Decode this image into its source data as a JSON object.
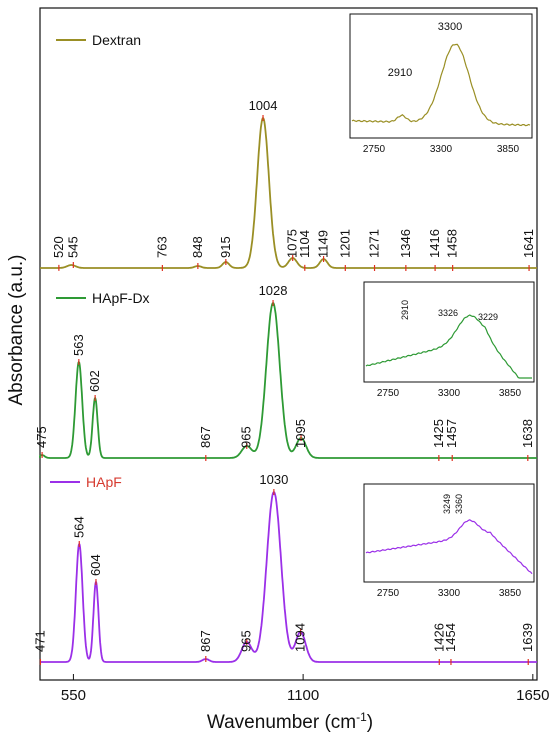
{
  "chart_data": {
    "type": "line",
    "xlabel": "Wavenumber (cm",
    "xlabel_sup": "-1",
    "xlabel_close": ")",
    "ylabel": "Absorbance (a.u.)",
    "xlim": [
      470,
      1660
    ],
    "x_ticks": [
      550,
      1100,
      1650
    ],
    "x_tick_labels": [
      "550",
      "1100",
      "1650"
    ],
    "grid": false,
    "series": [
      {
        "name": "Dextran",
        "color": "#9a8f25",
        "name_color": "#111111",
        "peaks": [
          {
            "x": 1004,
            "h": 150,
            "w": 14
          },
          {
            "x": 1075,
            "h": 10,
            "w": 10
          },
          {
            "x": 1149,
            "h": 9,
            "w": 9
          },
          {
            "x": 915,
            "h": 6,
            "w": 8
          },
          {
            "x": 848,
            "h": 2,
            "w": 8
          },
          {
            "x": 545,
            "h": 3,
            "w": 10
          }
        ],
        "labels": [
          {
            "x": 520,
            "text": "520"
          },
          {
            "x": 545,
            "text": "545"
          },
          {
            "x": 763,
            "text": "763"
          },
          {
            "x": 848,
            "text": "848"
          },
          {
            "x": 915,
            "text": "915"
          },
          {
            "x": 1004,
            "text": "1004"
          },
          {
            "x": 1075,
            "text": "1075"
          },
          {
            "x": 1104,
            "text": "1104"
          },
          {
            "x": 1149,
            "text": "1149"
          },
          {
            "x": 1201,
            "text": "1201"
          },
          {
            "x": 1271,
            "text": "1271"
          },
          {
            "x": 1346,
            "text": "1346"
          },
          {
            "x": 1416,
            "text": "1416"
          },
          {
            "x": 1458,
            "text": "1458"
          },
          {
            "x": 1641,
            "text": "1641"
          }
        ]
      },
      {
        "name": "HApF-Dx",
        "color": "#2e9a35",
        "name_color": "#111111",
        "peaks": [
          {
            "x": 1028,
            "h": 155,
            "w": 16
          },
          {
            "x": 563,
            "h": 96,
            "w": 8
          },
          {
            "x": 602,
            "h": 60,
            "w": 6
          },
          {
            "x": 1095,
            "h": 20,
            "w": 12
          },
          {
            "x": 965,
            "h": 12,
            "w": 12
          },
          {
            "x": 475,
            "h": 3,
            "w": 6
          }
        ],
        "labels": [
          {
            "x": 475,
            "text": "475"
          },
          {
            "x": 563,
            "text": "563"
          },
          {
            "x": 602,
            "text": "602"
          },
          {
            "x": 867,
            "text": "867"
          },
          {
            "x": 965,
            "text": "965"
          },
          {
            "x": 1028,
            "text": "1028"
          },
          {
            "x": 1095,
            "text": "1095"
          },
          {
            "x": 1425,
            "text": "1425"
          },
          {
            "x": 1457,
            "text": "1457"
          },
          {
            "x": 1638,
            "text": "1638"
          }
        ]
      },
      {
        "name": "HApF",
        "color": "#9b30e8",
        "name_color": "#d63a2f",
        "peaks": [
          {
            "x": 1030,
            "h": 170,
            "w": 17
          },
          {
            "x": 564,
            "h": 118,
            "w": 8
          },
          {
            "x": 604,
            "h": 80,
            "w": 6
          },
          {
            "x": 1094,
            "h": 30,
            "w": 12
          },
          {
            "x": 965,
            "h": 20,
            "w": 12
          },
          {
            "x": 867,
            "h": 3,
            "w": 8
          }
        ],
        "labels": [
          {
            "x": 471,
            "text": "471"
          },
          {
            "x": 564,
            "text": "564"
          },
          {
            "x": 604,
            "text": "604"
          },
          {
            "x": 867,
            "text": "867"
          },
          {
            "x": 965,
            "text": "965"
          },
          {
            "x": 1030,
            "text": "1030"
          },
          {
            "x": 1094,
            "text": "1094"
          },
          {
            "x": 1426,
            "text": "1426"
          },
          {
            "x": 1454,
            "text": "1454"
          },
          {
            "x": 1639,
            "text": "1639"
          }
        ]
      }
    ],
    "insets": [
      {
        "series": "Dextran",
        "x_ticks": [
          "2750",
          "3300",
          "3850"
        ],
        "labels": [
          "2910",
          "3300"
        ]
      },
      {
        "series": "HApF-Dx",
        "x_ticks": [
          "2750",
          "3300",
          "3850"
        ],
        "labels": [
          "2910",
          "3326",
          "3229"
        ]
      },
      {
        "series": "HApF",
        "x_ticks": [
          "2750",
          "3300",
          "3850"
        ],
        "labels": [
          "3249",
          "3360"
        ]
      }
    ]
  }
}
